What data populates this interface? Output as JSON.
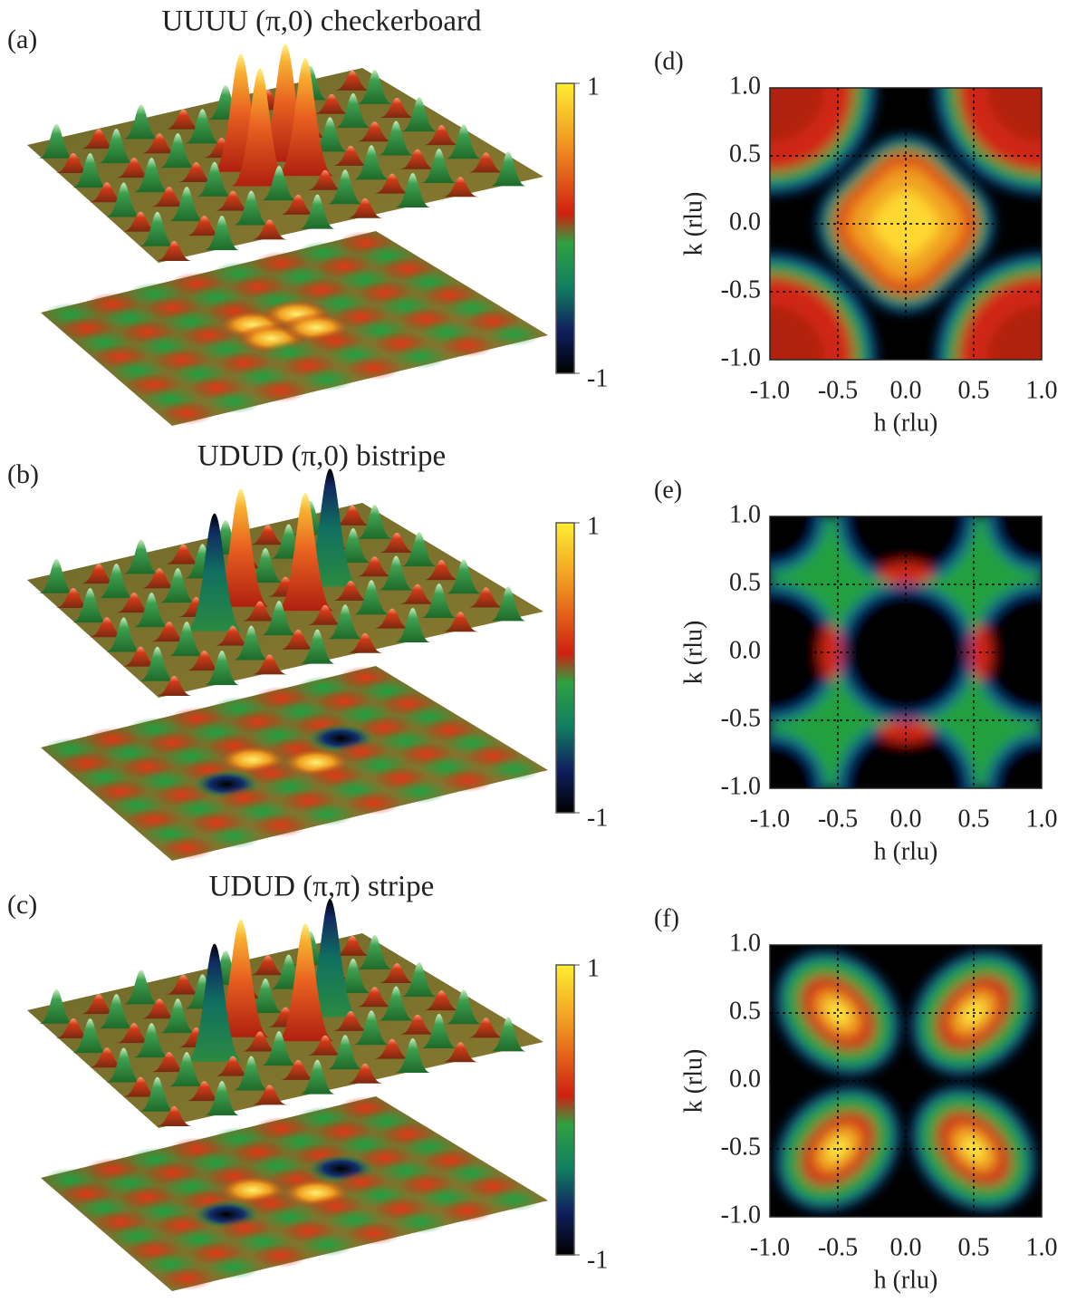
{
  "panels": [
    {
      "label": "(a)",
      "title": "UUUU (π,0) checkerboard",
      "colorbar_ticks": [
        1,
        -1
      ]
    },
    {
      "label": "(b)",
      "title": "UDUD (π,0) bistripe",
      "colorbar_ticks": [
        1,
        -1
      ]
    },
    {
      "label": "(c)",
      "title": "UDUD (π,π) stripe",
      "colorbar_ticks": [
        1,
        -1
      ]
    }
  ],
  "maps": [
    {
      "label": "(d)",
      "xlabel": "h (rlu)",
      "ylabel": "k (rlu)",
      "xlim": [
        -1,
        1
      ],
      "ylim": [
        -1,
        1
      ],
      "xticks": [
        {
          "value": -1,
          "label": "-1.0"
        },
        {
          "value": -0.5,
          "label": "-0.5"
        },
        {
          "value": 0,
          "label": "0.0"
        },
        {
          "value": 0.5,
          "label": "0.5"
        },
        {
          "value": 1,
          "label": "1.0"
        }
      ],
      "yticks": [
        {
          "value": -1,
          "label": "-1.0"
        },
        {
          "value": -0.5,
          "label": "-0.5"
        },
        {
          "value": 0,
          "label": "0.0"
        },
        {
          "value": 0.5,
          "label": "0.5"
        },
        {
          "value": 1,
          "label": "1.0"
        }
      ]
    },
    {
      "label": "(e)",
      "xlabel": "h (rlu)",
      "ylabel": "k (rlu)",
      "xlim": [
        -1,
        1
      ],
      "ylim": [
        -1,
        1
      ],
      "xticks": [
        {
          "value": -1,
          "label": "-1.0"
        },
        {
          "value": -0.5,
          "label": "-0.5"
        },
        {
          "value": 0,
          "label": "0.0"
        },
        {
          "value": 0.5,
          "label": "0.5"
        },
        {
          "value": 1,
          "label": "1.0"
        }
      ],
      "yticks": [
        {
          "value": -1,
          "label": "-1.0"
        },
        {
          "value": -0.5,
          "label": "-0.5"
        },
        {
          "value": 0,
          "label": "0.0"
        },
        {
          "value": 0.5,
          "label": "0.5"
        },
        {
          "value": 1,
          "label": "1.0"
        }
      ]
    },
    {
      "label": "(f)",
      "xlabel": "h (rlu)",
      "ylabel": "k (rlu)",
      "xlim": [
        -1,
        1
      ],
      "ylim": [
        -1,
        1
      ],
      "xticks": [
        {
          "value": -1,
          "label": "-1.0"
        },
        {
          "value": -0.5,
          "label": "-0.5"
        },
        {
          "value": 0,
          "label": "0.0"
        },
        {
          "value": 0.5,
          "label": "0.5"
        },
        {
          "value": 1,
          "label": "1.0"
        }
      ],
      "yticks": [
        {
          "value": -1,
          "label": "-1.0"
        },
        {
          "value": -0.5,
          "label": "-0.5"
        },
        {
          "value": 0,
          "label": "0.0"
        },
        {
          "value": 0.5,
          "label": "0.5"
        },
        {
          "value": 1,
          "label": "1.0"
        }
      ]
    }
  ]
}
